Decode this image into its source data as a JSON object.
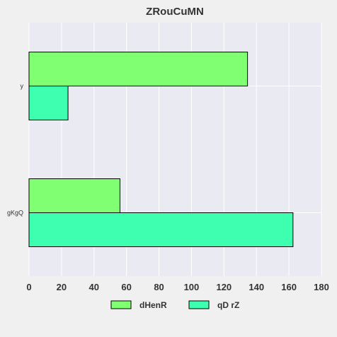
{
  "chart_data": {
    "type": "bar",
    "orientation": "horizontal",
    "title": "ZRouCuMN",
    "categories": [
      "y",
      "gKgQ"
    ],
    "series": [
      {
        "name": "dHenR",
        "values": [
          134.5,
          56
        ],
        "color": "#80ff72"
      },
      {
        "name": "qD rZ",
        "values": [
          24,
          162.5
        ],
        "color": "#3effb0"
      }
    ],
    "xlim": [
      0,
      180
    ],
    "xticks": [
      0,
      20,
      40,
      60,
      80,
      100,
      120,
      140,
      160,
      180
    ],
    "xlabel": "",
    "ylabel": "",
    "grid": true,
    "legend_position": "bottom"
  },
  "colors": {
    "background": "#f0f0f0",
    "plot_background": "#eaeaf2",
    "grid": "#ffffff",
    "bar_edge": "#000000",
    "text": "#333333"
  }
}
